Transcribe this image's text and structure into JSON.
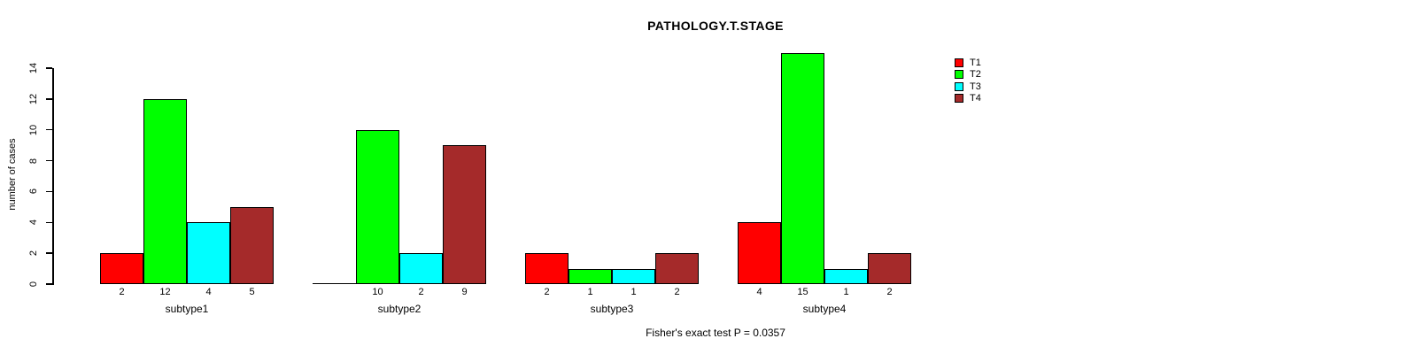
{
  "chart_data": {
    "type": "bar",
    "title": "PATHOLOGY.T.STAGE",
    "ylabel": "number of cases",
    "xlabel": "",
    "footnote": "Fisher's exact test P = 0.0357",
    "categories": [
      "subtype1",
      "subtype2",
      "subtype3",
      "subtype4"
    ],
    "series": [
      {
        "name": "T1",
        "color": "#FF0000",
        "values": [
          2,
          0,
          2,
          4
        ]
      },
      {
        "name": "T2",
        "color": "#00FF00",
        "values": [
          12,
          10,
          1,
          15
        ]
      },
      {
        "name": "T3",
        "color": "#00FFFF",
        "values": [
          4,
          2,
          1,
          1
        ]
      },
      {
        "name": "T4",
        "color": "#A52A2A",
        "values": [
          5,
          9,
          2,
          2
        ]
      }
    ],
    "bar_value_labels": [
      [
        "2",
        "12",
        "4",
        "5"
      ],
      [
        "",
        "10",
        "2",
        "9"
      ],
      [
        "2",
        "1",
        "1",
        "2"
      ],
      [
        "4",
        "15",
        "1",
        "2"
      ]
    ],
    "yticks": [
      "0",
      "2",
      "4",
      "6",
      "8",
      "10",
      "12",
      "14"
    ],
    "ylim": [
      0,
      14
    ],
    "grid": false,
    "legend": {
      "position": "top-right",
      "entries": [
        {
          "label": "T1",
          "color": "#FF0000"
        },
        {
          "label": "T2",
          "color": "#00FF00"
        },
        {
          "label": "T3",
          "color": "#00FFFF"
        },
        {
          "label": "T4",
          "color": "#A52A2A"
        }
      ]
    }
  }
}
